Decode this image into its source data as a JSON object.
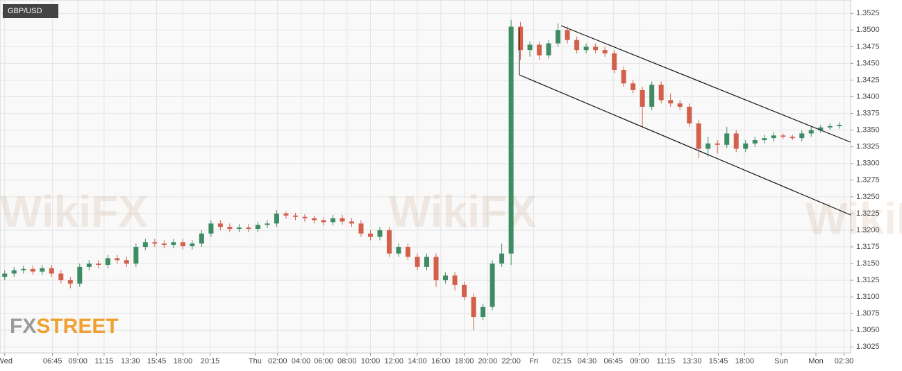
{
  "chart_data": {
    "type": "candlestick",
    "title": "GBP/USD",
    "watermark": "WikiFX",
    "logo": {
      "fx": "FX",
      "street": "STREET"
    },
    "up_color": "#3d8c63",
    "down_color": "#d2604a",
    "x": [
      0,
      1,
      2,
      3,
      4,
      5,
      6,
      7,
      8,
      9,
      10,
      11,
      12,
      13,
      14,
      15,
      16,
      17,
      18,
      19,
      20,
      21,
      22,
      23,
      24,
      25,
      26,
      27,
      28,
      29,
      30,
      31,
      32,
      33,
      34,
      35,
      36,
      37,
      38,
      39,
      40,
      41,
      42,
      43,
      44,
      45,
      46,
      47,
      48,
      49,
      50,
      51,
      52,
      53,
      54,
      55,
      56,
      57,
      58,
      59,
      60,
      61,
      62,
      63,
      64,
      65,
      66,
      67,
      68,
      69,
      70,
      71,
      72,
      73,
      74,
      75,
      76,
      77,
      78,
      79,
      80,
      81,
      82,
      83,
      84,
      85,
      86,
      87,
      88,
      89
    ],
    "values": [
      [
        1.313,
        1.314,
        1.3125,
        1.3135
      ],
      [
        1.3135,
        1.3145,
        1.313,
        1.314
      ],
      [
        1.314,
        1.3147,
        1.3135,
        1.3142
      ],
      [
        1.3142,
        1.3147,
        1.3133,
        1.3138
      ],
      [
        1.3138,
        1.3148,
        1.3133,
        1.3143
      ],
      [
        1.3143,
        1.3148,
        1.313,
        1.3135
      ],
      [
        1.3135,
        1.314,
        1.312,
        1.3125
      ],
      [
        1.3125,
        1.313,
        1.3113,
        1.312
      ],
      [
        1.312,
        1.315,
        1.3115,
        1.3145
      ],
      [
        1.3145,
        1.3155,
        1.314,
        1.315
      ],
      [
        1.315,
        1.3155,
        1.3143,
        1.3148
      ],
      [
        1.3148,
        1.3163,
        1.3143,
        1.3158
      ],
      [
        1.3158,
        1.3163,
        1.315,
        1.3155
      ],
      [
        1.3155,
        1.316,
        1.3145,
        1.315
      ],
      [
        1.315,
        1.318,
        1.3145,
        1.3175
      ],
      [
        1.3175,
        1.3187,
        1.317,
        1.3182
      ],
      [
        1.3182,
        1.3187,
        1.3175,
        1.318
      ],
      [
        1.318,
        1.3185,
        1.3173,
        1.3178
      ],
      [
        1.3178,
        1.3187,
        1.3173,
        1.3182
      ],
      [
        1.3182,
        1.3187,
        1.3171,
        1.3176
      ],
      [
        1.3176,
        1.3185,
        1.3171,
        1.318
      ],
      [
        1.318,
        1.32,
        1.3175,
        1.3195
      ],
      [
        1.3195,
        1.3215,
        1.319,
        1.321
      ],
      [
        1.321,
        1.3215,
        1.32,
        1.3205
      ],
      [
        1.3205,
        1.321,
        1.3197,
        1.3202
      ],
      [
        1.3202,
        1.3209,
        1.3197,
        1.3204
      ],
      [
        1.3204,
        1.3209,
        1.3197,
        1.3202
      ],
      [
        1.3202,
        1.3213,
        1.3197,
        1.3208
      ],
      [
        1.3208,
        1.3215,
        1.3203,
        1.321
      ],
      [
        1.321,
        1.323,
        1.3205,
        1.3225
      ],
      [
        1.3225,
        1.3228,
        1.3217,
        1.3222
      ],
      [
        1.3222,
        1.3226,
        1.3215,
        1.322
      ],
      [
        1.322,
        1.3224,
        1.3213,
        1.3218
      ],
      [
        1.3218,
        1.3222,
        1.321,
        1.3215
      ],
      [
        1.3215,
        1.3219,
        1.3207,
        1.3212
      ],
      [
        1.3212,
        1.3223,
        1.3207,
        1.3218
      ],
      [
        1.3218,
        1.3223,
        1.3208,
        1.3213
      ],
      [
        1.3213,
        1.3218,
        1.3205,
        1.321
      ],
      [
        1.321,
        1.3215,
        1.319,
        1.3195
      ],
      [
        1.3195,
        1.32,
        1.3185,
        1.319
      ],
      [
        1.319,
        1.3205,
        1.3185,
        1.32
      ],
      [
        1.32,
        1.3205,
        1.316,
        1.3165
      ],
      [
        1.3165,
        1.318,
        1.316,
        1.3175
      ],
      [
        1.3175,
        1.318,
        1.3155,
        1.316
      ],
      [
        1.316,
        1.3165,
        1.314,
        1.3145
      ],
      [
        1.3145,
        1.3165,
        1.314,
        1.316
      ],
      [
        1.316,
        1.3165,
        1.3115,
        1.3125
      ],
      [
        1.3125,
        1.3137,
        1.312,
        1.3132
      ],
      [
        1.3132,
        1.3137,
        1.311,
        1.3118
      ],
      [
        1.3118,
        1.3123,
        1.3095,
        1.31
      ],
      [
        1.31,
        1.3105,
        1.305,
        1.307
      ],
      [
        1.307,
        1.309,
        1.3065,
        1.3085
      ],
      [
        1.3085,
        1.3155,
        1.308,
        1.315
      ],
      [
        1.315,
        1.318,
        1.3145,
        1.3165
      ],
      [
        1.3165,
        1.3515,
        1.3148,
        1.3505
      ],
      [
        1.3505,
        1.3512,
        1.3455,
        1.347
      ],
      [
        1.347,
        1.3483,
        1.346,
        1.3478
      ],
      [
        1.3478,
        1.3483,
        1.3455,
        1.3462
      ],
      [
        1.3462,
        1.3485,
        1.3457,
        1.348
      ],
      [
        1.348,
        1.351,
        1.3475,
        1.35
      ],
      [
        1.35,
        1.3505,
        1.348,
        1.3485
      ],
      [
        1.3485,
        1.349,
        1.3465,
        1.347
      ],
      [
        1.347,
        1.348,
        1.3465,
        1.3475
      ],
      [
        1.3475,
        1.348,
        1.3465,
        1.347
      ],
      [
        1.347,
        1.3475,
        1.346,
        1.3465
      ],
      [
        1.3465,
        1.347,
        1.3435,
        1.344
      ],
      [
        1.344,
        1.3445,
        1.3415,
        1.342
      ],
      [
        1.342,
        1.3425,
        1.3405,
        1.341
      ],
      [
        1.341,
        1.3415,
        1.3355,
        1.3385
      ],
      [
        1.3385,
        1.3423,
        1.338,
        1.3418
      ],
      [
        1.3418,
        1.3423,
        1.339,
        1.3395
      ],
      [
        1.3395,
        1.3405,
        1.3385,
        1.339
      ],
      [
        1.339,
        1.3395,
        1.338,
        1.3385
      ],
      [
        1.3385,
        1.339,
        1.3355,
        1.336
      ],
      [
        1.336,
        1.3365,
        1.3308,
        1.3322
      ],
      [
        1.3322,
        1.334,
        1.331,
        1.333
      ],
      [
        1.333,
        1.3335,
        1.3315,
        1.3328
      ],
      [
        1.3328,
        1.3355,
        1.3323,
        1.3345
      ],
      [
        1.3345,
        1.335,
        1.3317,
        1.3322
      ],
      [
        1.3322,
        1.3335,
        1.3317,
        1.333
      ],
      [
        1.333,
        1.334,
        1.3325,
        1.3335
      ],
      [
        1.3335,
        1.3343,
        1.333,
        1.3338
      ],
      [
        1.3338,
        1.3347,
        1.3333,
        1.3342
      ],
      [
        1.3342,
        1.3345,
        1.3337,
        1.334
      ],
      [
        1.334,
        1.3343,
        1.3335,
        1.3338
      ],
      [
        1.3338,
        1.335,
        1.3333,
        1.3345
      ],
      [
        1.3345,
        1.3355,
        1.334,
        1.335
      ],
      [
        1.335,
        1.3358,
        1.3346,
        1.3354
      ],
      [
        1.3354,
        1.336,
        1.335,
        1.3356
      ],
      [
        1.3356,
        1.3362,
        1.3352,
        1.3358
      ]
    ],
    "xlim": [
      -0.5,
      90.2
    ],
    "xticks": [
      {
        "value": 0,
        "label": "Wed"
      },
      {
        "value": 5.1,
        "label": "06:45"
      },
      {
        "value": 7.8,
        "label": "09:00"
      },
      {
        "value": 10.6,
        "label": "11:15"
      },
      {
        "value": 13.4,
        "label": "13:30"
      },
      {
        "value": 16.2,
        "label": "15:45"
      },
      {
        "value": 19.0,
        "label": "18:00"
      },
      {
        "value": 21.9,
        "label": "20:15"
      },
      {
        "value": 26.7,
        "label": "Thu"
      },
      {
        "value": 29.1,
        "label": "02:00"
      },
      {
        "value": 31.6,
        "label": "04:00"
      },
      {
        "value": 34.0,
        "label": "06:00"
      },
      {
        "value": 36.5,
        "label": "08:00"
      },
      {
        "value": 39.0,
        "label": "10:00"
      },
      {
        "value": 41.5,
        "label": "12:00"
      },
      {
        "value": 44.0,
        "label": "14:00"
      },
      {
        "value": 46.5,
        "label": "16:00"
      },
      {
        "value": 49.0,
        "label": "18:00"
      },
      {
        "value": 51.5,
        "label": "20:00"
      },
      {
        "value": 54.0,
        "label": "22:00"
      },
      {
        "value": 56.4,
        "label": "Fri"
      },
      {
        "value": 59.4,
        "label": "02:15"
      },
      {
        "value": 62.1,
        "label": "04:30"
      },
      {
        "value": 64.9,
        "label": "06:45"
      },
      {
        "value": 67.7,
        "label": "09:00"
      },
      {
        "value": 70.5,
        "label": "11:15"
      },
      {
        "value": 73.3,
        "label": "13:30"
      },
      {
        "value": 76.1,
        "label": "15:45"
      },
      {
        "value": 78.9,
        "label": "18:00"
      },
      {
        "value": 82.8,
        "label": "Sun"
      },
      {
        "value": 86.5,
        "label": "Mon"
      },
      {
        "value": 89.5,
        "label": "02:30"
      }
    ],
    "ylim": [
      1.3016,
      1.3545
    ],
    "yticks": [
      1.3025,
      {
        "value": 1.305,
        "label": "1.3050"
      },
      1.3075,
      {
        "value": 1.31,
        "label": "1.3100"
      },
      1.3125,
      {
        "value": 1.315,
        "label": "1.3150"
      },
      1.3175,
      {
        "value": 1.32,
        "label": "1.3200"
      },
      1.3225,
      {
        "value": 1.325,
        "label": "1.3250"
      },
      1.3275,
      {
        "value": 1.33,
        "label": "1.3300"
      },
      1.3325,
      {
        "value": 1.335,
        "label": "1.3350"
      },
      1.3375,
      {
        "value": 1.34,
        "label": "1.3400"
      },
      1.3425,
      {
        "value": 1.345,
        "label": "1.3450"
      },
      1.3475,
      {
        "value": 1.35,
        "label": "1.3500"
      },
      1.3525
    ],
    "grid": true
  }
}
